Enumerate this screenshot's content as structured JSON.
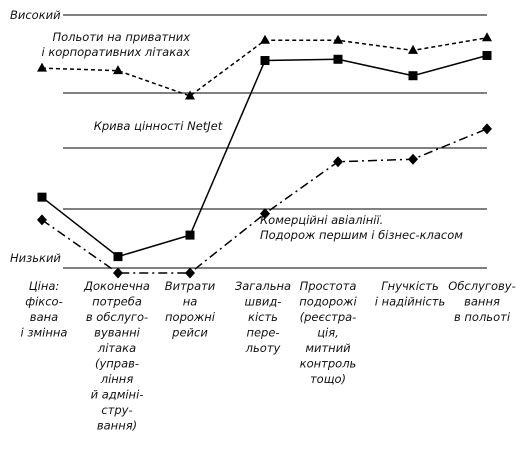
{
  "chart_data": {
    "type": "line",
    "y_top_label": "Високий",
    "y_bottom_label": "Низький",
    "categories": [
      [
        "Ціна:",
        "фіксо-",
        "вана",
        "і змінна"
      ],
      [
        "Доконечна",
        "потреба",
        "в обслуго-",
        "вуванні",
        "літака",
        "(управ-",
        "ління",
        "й адміні-",
        "стру-",
        "вання)"
      ],
      [
        "Витрати",
        "на",
        "порожні",
        "рейси"
      ],
      [
        "Загальна",
        "швид-",
        "кість",
        "пере-",
        "льоту"
      ],
      [
        "Простота",
        "подорожі",
        "(реєстра-",
        "ція,",
        "митний",
        "контроль",
        "тощо)"
      ],
      [
        "Гнучкість",
        "і надійність"
      ],
      [
        "Обслугову-",
        "вання",
        "в польоті"
      ]
    ],
    "y_range": [
      0,
      10
    ],
    "series": [
      {
        "name": "Польоти на приватних і корпоративних літаках",
        "label_lines": [
          "Польоти на приватних",
          "і корпоративних літаках"
        ],
        "style": "dashed",
        "marker": "triangle",
        "values": [
          7.9,
          7.8,
          6.8,
          9.0,
          9.0,
          8.6,
          9.1
        ]
      },
      {
        "name": "Крива цінності NetJet",
        "label_lines": [
          "Крива цінності NetJet"
        ],
        "style": "solid",
        "marker": "square",
        "values": [
          2.8,
          0.45,
          1.3,
          8.2,
          8.25,
          7.6,
          8.4
        ]
      },
      {
        "name": "Комерційні авіалінії. Подорож першим і бізнес-класом",
        "label_lines": [
          "Комерційні авіалінії.",
          "Подорож першим і бізнес-класом"
        ],
        "style": "dashdot",
        "marker": "diamond",
        "values": [
          1.9,
          -0.2,
          -0.2,
          2.15,
          4.2,
          4.3,
          5.5
        ]
      }
    ],
    "grid": "horizontal"
  }
}
